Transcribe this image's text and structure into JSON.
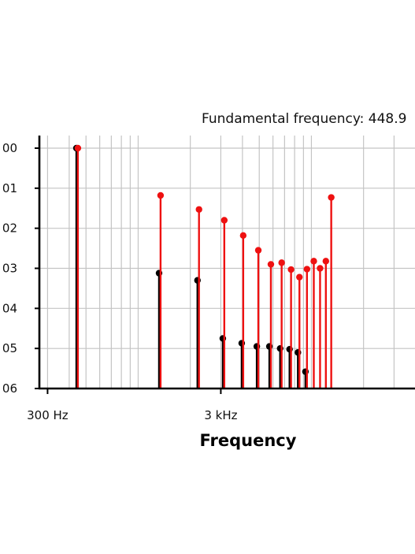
{
  "chart_data": {
    "type": "scatter",
    "annotation": "Fundamental frequency: 448.9",
    "xlabel": "Frequency",
    "ylabel": "",
    "x_scale": "log",
    "xlim": [
      277,
      11300
    ],
    "ylim": [
      0,
      6
    ],
    "grid": true,
    "x_ticks": [
      {
        "value": 300,
        "label": "300 Hz"
      },
      {
        "value": 3000,
        "label": "3 kHz"
      }
    ],
    "y_ticks": [
      {
        "value": 0,
        "label": "00"
      },
      {
        "value": 1,
        "label": "01"
      },
      {
        "value": 2,
        "label": "02"
      },
      {
        "value": 3,
        "label": "03"
      },
      {
        "value": 4,
        "label": "04"
      },
      {
        "value": 5,
        "label": "05"
      },
      {
        "value": 6,
        "label": "06"
      }
    ],
    "colors": {
      "black_series": "#000000",
      "red_series": "#ee1111"
    },
    "series": [
      {
        "color": "black",
        "points": [
          {
            "x": 440,
            "y": 0.0
          },
          {
            "x": 1320,
            "y": 3.12
          },
          {
            "x": 2200,
            "y": 3.3
          },
          {
            "x": 3080,
            "y": 4.75
          },
          {
            "x": 3960,
            "y": 4.87
          },
          {
            "x": 4840,
            "y": 4.95
          },
          {
            "x": 5720,
            "y": 4.95
          },
          {
            "x": 6600,
            "y": 5.0
          },
          {
            "x": 7480,
            "y": 5.02
          },
          {
            "x": 8360,
            "y": 5.1
          },
          {
            "x": 9240,
            "y": 5.58
          }
        ]
      },
      {
        "color": "red",
        "points": [
          {
            "x": 448.9,
            "y": 0.0
          },
          {
            "x": 1347,
            "y": 1.18
          },
          {
            "x": 2245,
            "y": 1.53
          },
          {
            "x": 3142,
            "y": 1.8
          },
          {
            "x": 4040,
            "y": 2.18
          },
          {
            "x": 4938,
            "y": 2.55
          },
          {
            "x": 5836,
            "y": 2.9
          },
          {
            "x": 6734,
            "y": 2.86
          },
          {
            "x": 7631,
            "y": 3.03
          },
          {
            "x": 8529,
            "y": 3.22
          },
          {
            "x": 9427,
            "y": 3.02
          },
          {
            "x": 10324,
            "y": 2.82
          },
          {
            "x": 11222,
            "y": 3.0
          },
          {
            "x": 12120,
            "y": 2.82
          },
          {
            "x": 13018,
            "y": 1.23
          }
        ]
      }
    ]
  }
}
